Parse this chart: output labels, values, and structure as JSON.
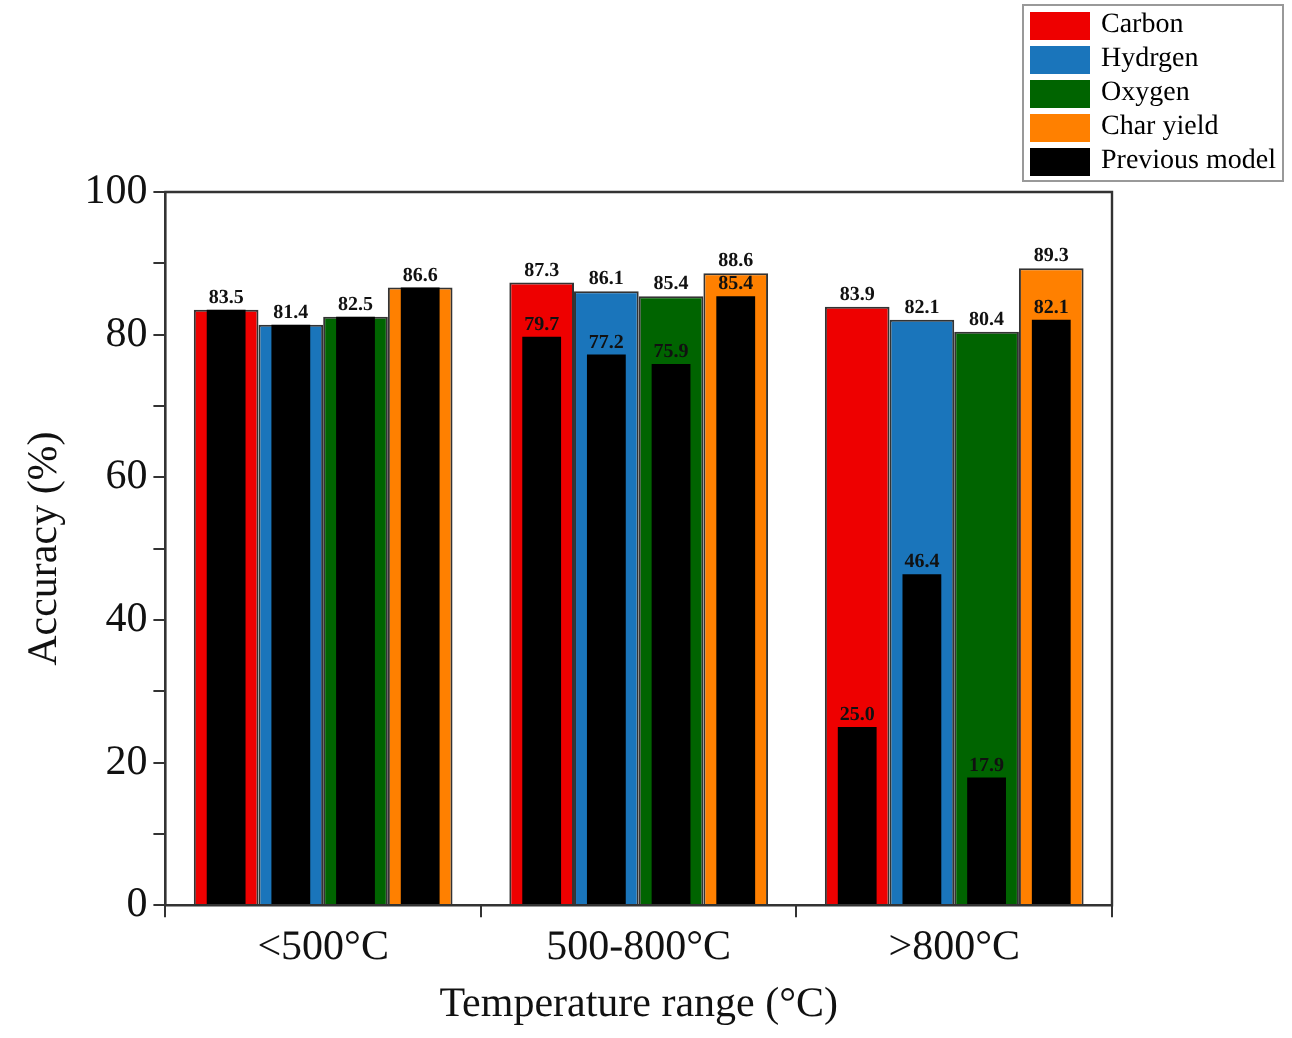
{
  "chart_data": {
    "type": "bar",
    "xlabel": "Temperature range (°C)",
    "ylabel": "Accuracy (%)",
    "categories": [
      "<500°C",
      "500-800°C",
      ">800°C"
    ],
    "series": [
      {
        "name": "Carbon",
        "color": "#ee0000",
        "values": [
          83.5,
          87.3,
          83.9
        ]
      },
      {
        "name": "Hydrgen",
        "color": "#1a75bb",
        "values": [
          81.4,
          86.1,
          82.1
        ]
      },
      {
        "name": "Oxygen",
        "color": "#006400",
        "values": [
          82.5,
          85.4,
          80.4
        ]
      },
      {
        "name": "Char yield",
        "color": "#ff8000",
        "values": [
          86.6,
          88.6,
          89.3
        ]
      },
      {
        "name": "Previous model",
        "color": "#000000",
        "values": [
          83.5,
          79.7,
          25.0
        ],
        "value_labels": [
          null,
          "79.7",
          "25.0"
        ]
      },
      {
        "color": "#000000",
        "values": [
          81.4,
          77.2,
          46.4
        ],
        "value_labels": [
          null,
          "77.2",
          "46.4"
        ]
      },
      {
        "color": "#000000",
        "values": [
          82.5,
          75.9,
          17.9
        ],
        "value_labels": [
          null,
          "75.9",
          "17.9"
        ]
      },
      {
        "color": "#000000",
        "values": [
          86.6,
          85.4,
          82.1
        ],
        "value_labels": [
          null,
          "85.4",
          "82.1"
        ]
      }
    ],
    "ylim": [
      0,
      100
    ],
    "yticks": [
      0,
      {
        "value": 10,
        "label": null
      },
      20,
      {
        "value": 30,
        "label": null
      },
      40,
      {
        "value": 50,
        "label": null
      },
      60,
      {
        "value": 70,
        "label": null
      },
      80,
      {
        "value": 90,
        "label": null
      },
      100
    ],
    "data_labels": true,
    "grid": false,
    "legend": "top right"
  }
}
